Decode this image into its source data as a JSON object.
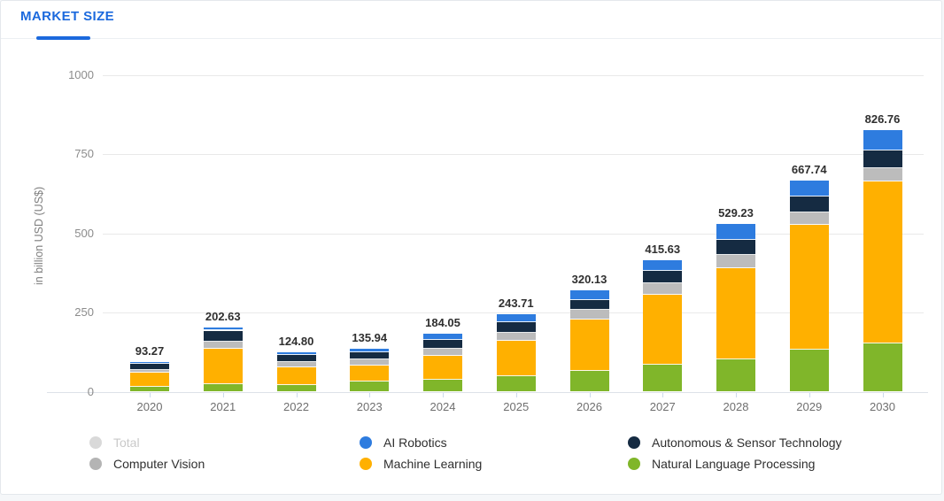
{
  "header": {
    "title": "MARKET SIZE"
  },
  "colors": {
    "accent_blue": "#1b69dd",
    "card_background": "#ffffff",
    "page_background": "#f5f7f9"
  },
  "chart_data": {
    "type": "bar",
    "subtype": "stacked-column",
    "title": "MARKET SIZE",
    "ylabel": "in billion USD (US$)",
    "xlabel": "",
    "ylim": [
      0,
      1000
    ],
    "yticks": [
      0,
      250,
      500,
      750,
      1000
    ],
    "grid": true,
    "categories": [
      "2020",
      "2021",
      "2022",
      "2023",
      "2024",
      "2025",
      "2026",
      "2027",
      "2028",
      "2029",
      "2030"
    ],
    "totals_labels": [
      "93.27",
      "202.63",
      "124.80",
      "135.94",
      "184.05",
      "243.71",
      "320.13",
      "415.63",
      "529.23",
      "667.74",
      "826.76"
    ],
    "series": [
      {
        "name": "Natural Language Processing",
        "color": "#80b62a",
        "values": [
          16.4,
          24.7,
          19.8,
          33.3,
          38.6,
          47.6,
          64.7,
          84.4,
          102.7,
          131.5,
          153.8
        ]
      },
      {
        "name": "Machine Learning",
        "color": "#ffb000",
        "values": [
          44.6,
          110.6,
          57.2,
          50.2,
          74.1,
          112.5,
          163.3,
          222.3,
          288.4,
          394.4,
          510.9
        ]
      },
      {
        "name": "Computer Vision",
        "color": "#bcbcbc",
        "values": [
          7.9,
          22.7,
          18.0,
          19.1,
          22.5,
          25.8,
          30.1,
          34.6,
          41.9,
          39.2,
          41.5
        ]
      },
      {
        "name": "Autonomous & Sensor Technology",
        "color": "#152b42",
        "values": [
          18.3,
          35.0,
          20.6,
          20.8,
          29.0,
          33.1,
          32.7,
          41.4,
          46.9,
          50.4,
          54.9
        ]
      },
      {
        "name": "AI Robotics",
        "color": "#2e7cdf",
        "values": [
          6.1,
          9.7,
          9.3,
          12.5,
          19.8,
          24.7,
          29.3,
          32.9,
          49.3,
          52.3,
          65.5
        ]
      }
    ],
    "legend_position": "bottom",
    "legend_columns": [
      [
        {
          "label": "Total",
          "color": "#d9d9d9",
          "disabled": true
        },
        {
          "label": "Computer Vision",
          "color": "#b4b4b4",
          "disabled": false
        }
      ],
      [
        {
          "label": "AI Robotics",
          "color": "#2e7cdf",
          "disabled": false
        },
        {
          "label": "Machine Learning",
          "color": "#ffb000",
          "disabled": false
        }
      ],
      [
        {
          "label": "Autonomous & Sensor Technology",
          "color": "#152b42",
          "disabled": false
        },
        {
          "label": "Natural Language Processing",
          "color": "#80b62a",
          "disabled": false
        }
      ]
    ]
  }
}
